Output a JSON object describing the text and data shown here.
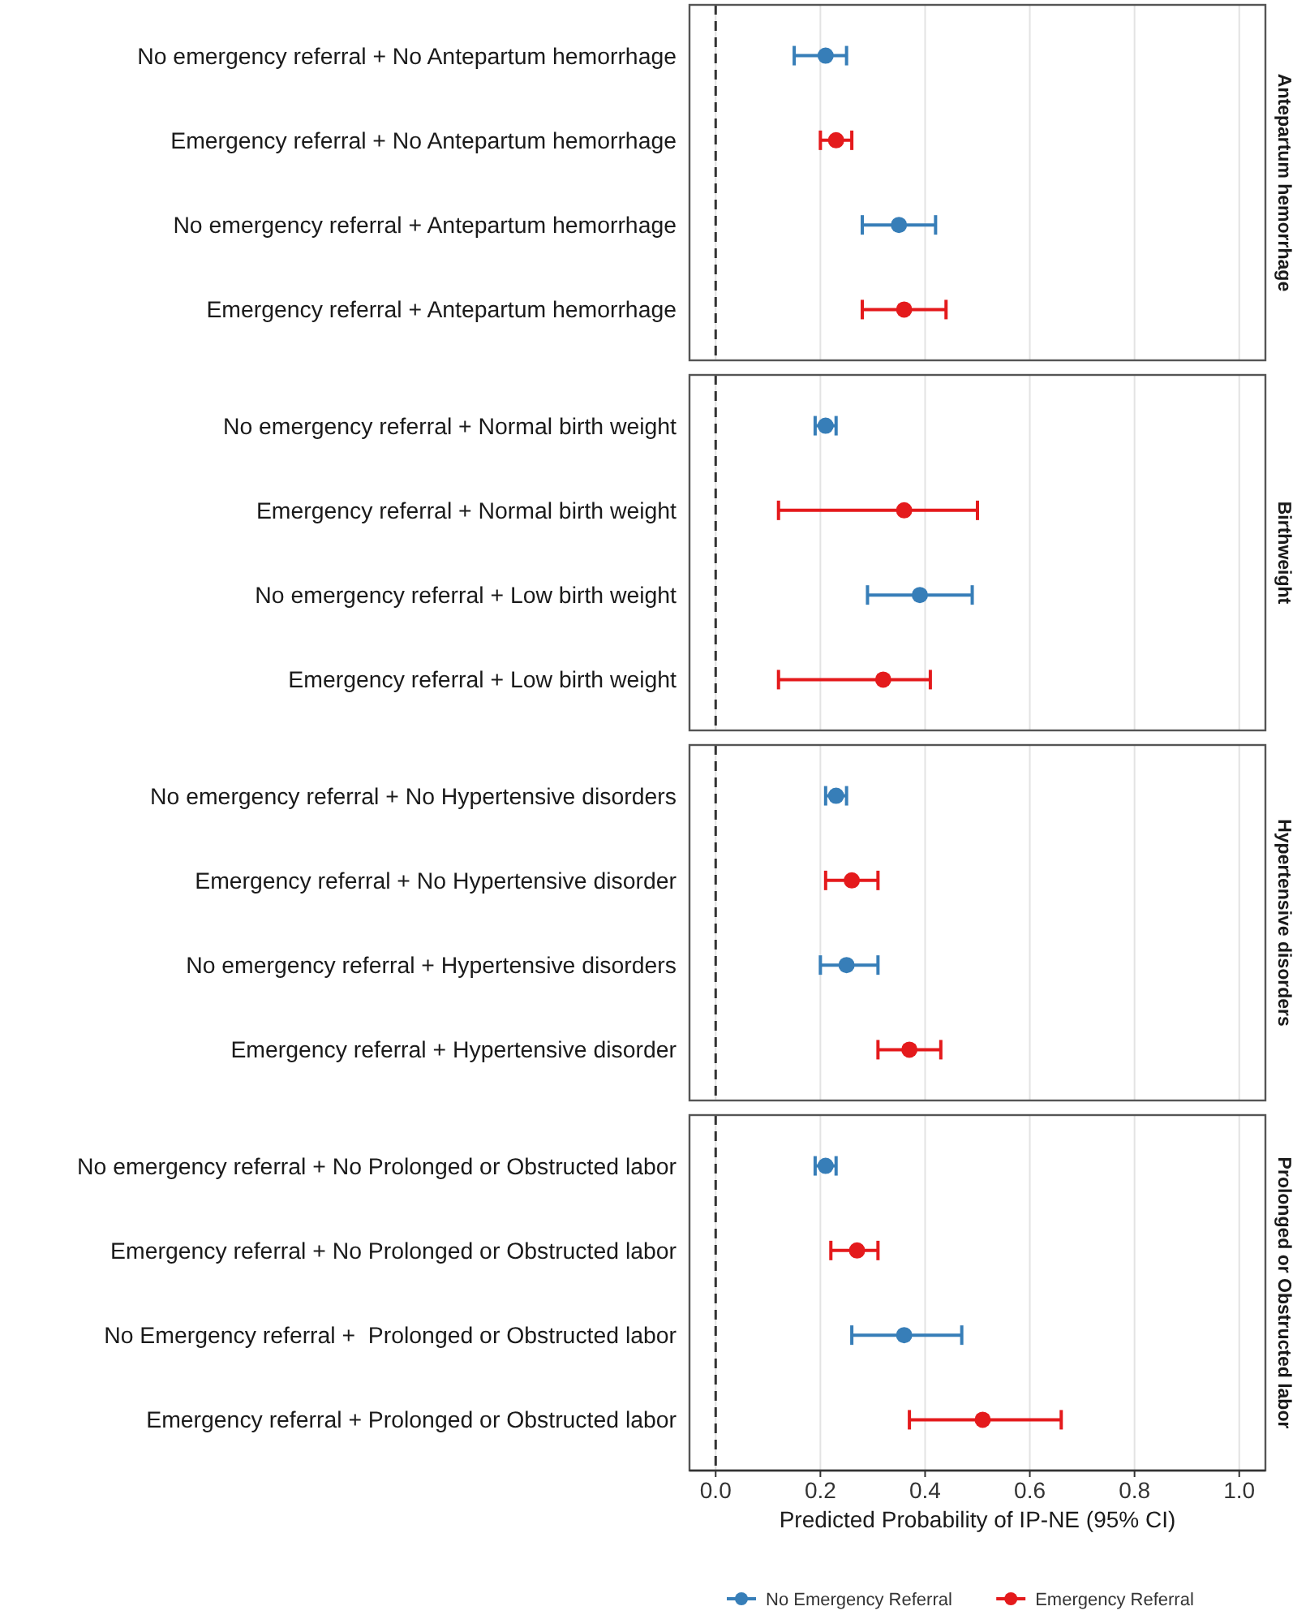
{
  "chart_data": [
    {
      "type": "scatter",
      "orientation": "horizontal",
      "title": "Antepartum hemorrhage",
      "categories": [
        "No emergency referral + No Antepartum hemorrhage",
        "Emergency referral + No Antepartum hemorrhage",
        "No emergency referral + Antepartum hemorrhage",
        "Emergency referral + Antepartum hemorrhage"
      ],
      "series": [
        {
          "color": "#377eb8",
          "values": [
            0.21,
            null,
            0.35,
            null
          ],
          "errors": [
            [
              0.15,
              0.25
            ],
            null,
            [
              0.28,
              0.42
            ],
            null
          ]
        },
        {
          "color": "#e41a1c",
          "values": [
            null,
            0.23,
            null,
            0.36
          ],
          "errors": [
            null,
            [
              0.2,
              0.26
            ],
            null,
            [
              0.28,
              0.44
            ]
          ]
        }
      ],
      "xlim": [
        -0.05,
        1.05
      ],
      "xticks": [
        0,
        0.2,
        0.4,
        0.6,
        0.8,
        1
      ],
      "grid": "x",
      "marker": "circle",
      "tick_labels": "y",
      "ref_lines": [
        {
          "axis": "x",
          "value": 0,
          "line_style": "dashed",
          "color": "#333333"
        }
      ]
    },
    {
      "type": "scatter",
      "orientation": "horizontal",
      "title": "Birthweight",
      "categories": [
        "No emergency referral + Normal birth weight",
        "Emergency referral + Normal birth weight",
        "No emergency referral + Low birth weight",
        "Emergency referral + Low birth weight"
      ],
      "series": [
        {
          "color": "#377eb8",
          "values": [
            0.21,
            null,
            0.39,
            null
          ],
          "errors": [
            [
              0.19,
              0.23
            ],
            null,
            [
              0.29,
              0.49
            ],
            null
          ]
        },
        {
          "color": "#e41a1c",
          "values": [
            null,
            0.36,
            null,
            0.32
          ],
          "errors": [
            null,
            [
              0.12,
              0.5
            ],
            null,
            [
              0.12,
              0.41
            ]
          ]
        }
      ],
      "xlim": [
        -0.05,
        1.05
      ],
      "xticks": [
        0,
        0.2,
        0.4,
        0.6,
        0.8,
        1
      ],
      "grid": "x",
      "marker": "circle",
      "tick_labels": "y",
      "ref_lines": [
        {
          "axis": "x",
          "value": 0,
          "line_style": "dashed",
          "color": "#333333"
        }
      ]
    },
    {
      "type": "scatter",
      "orientation": "horizontal",
      "title": "Hypertensive disorders",
      "categories": [
        "No emergency referral + No Hypertensive disorders",
        "Emergency referral + No Hypertensive disorder",
        "No emergency referral + Hypertensive disorders",
        "Emergency referral + Hypertensive disorder"
      ],
      "series": [
        {
          "color": "#377eb8",
          "values": [
            0.23,
            null,
            0.25,
            null
          ],
          "errors": [
            [
              0.21,
              0.25
            ],
            null,
            [
              0.2,
              0.31
            ],
            null
          ]
        },
        {
          "color": "#e41a1c",
          "values": [
            null,
            0.26,
            null,
            0.37
          ],
          "errors": [
            null,
            [
              0.21,
              0.31
            ],
            null,
            [
              0.31,
              0.43
            ]
          ]
        }
      ],
      "xlim": [
        -0.05,
        1.05
      ],
      "xticks": [
        0,
        0.2,
        0.4,
        0.6,
        0.8,
        1
      ],
      "grid": "x",
      "marker": "circle",
      "tick_labels": "y",
      "ref_lines": [
        {
          "axis": "x",
          "value": 0,
          "line_style": "dashed",
          "color": "#333333"
        }
      ]
    },
    {
      "type": "scatter",
      "orientation": "horizontal",
      "title": "Prolonged or Obstructed labor",
      "xlabel": "Predicted Probability of IP-NE (95% CI)",
      "categories": [
        "No emergency referral + No Prolonged or Obstructed labor",
        "Emergency referral + No Prolonged or Obstructed labor",
        "No Emergency referral +  Prolonged or Obstructed labor",
        "Emergency referral + Prolonged or Obstructed labor"
      ],
      "series": [
        {
          "name": "No Emergency Referral",
          "color": "#377eb8",
          "values": [
            0.21,
            null,
            0.36,
            null
          ],
          "errors": [
            [
              0.19,
              0.23
            ],
            null,
            [
              0.26,
              0.47
            ],
            null
          ]
        },
        {
          "name": "Emergency Referral",
          "color": "#e41a1c",
          "values": [
            null,
            0.27,
            null,
            0.51
          ],
          "errors": [
            null,
            [
              0.22,
              0.31
            ],
            null,
            [
              0.37,
              0.66
            ]
          ]
        }
      ],
      "xlim": [
        -0.05,
        1.05
      ],
      "xticks": [
        {
          "value": 0,
          "label": "0.0"
        },
        0.2,
        0.4,
        0.6,
        0.8,
        {
          "value": 1,
          "label": "1.0"
        }
      ],
      "grid": "x",
      "marker": "circle",
      "legend": "bottom",
      "ref_lines": [
        {
          "axis": "x",
          "value": 0,
          "line_style": "dashed",
          "color": "#333333"
        }
      ]
    }
  ]
}
